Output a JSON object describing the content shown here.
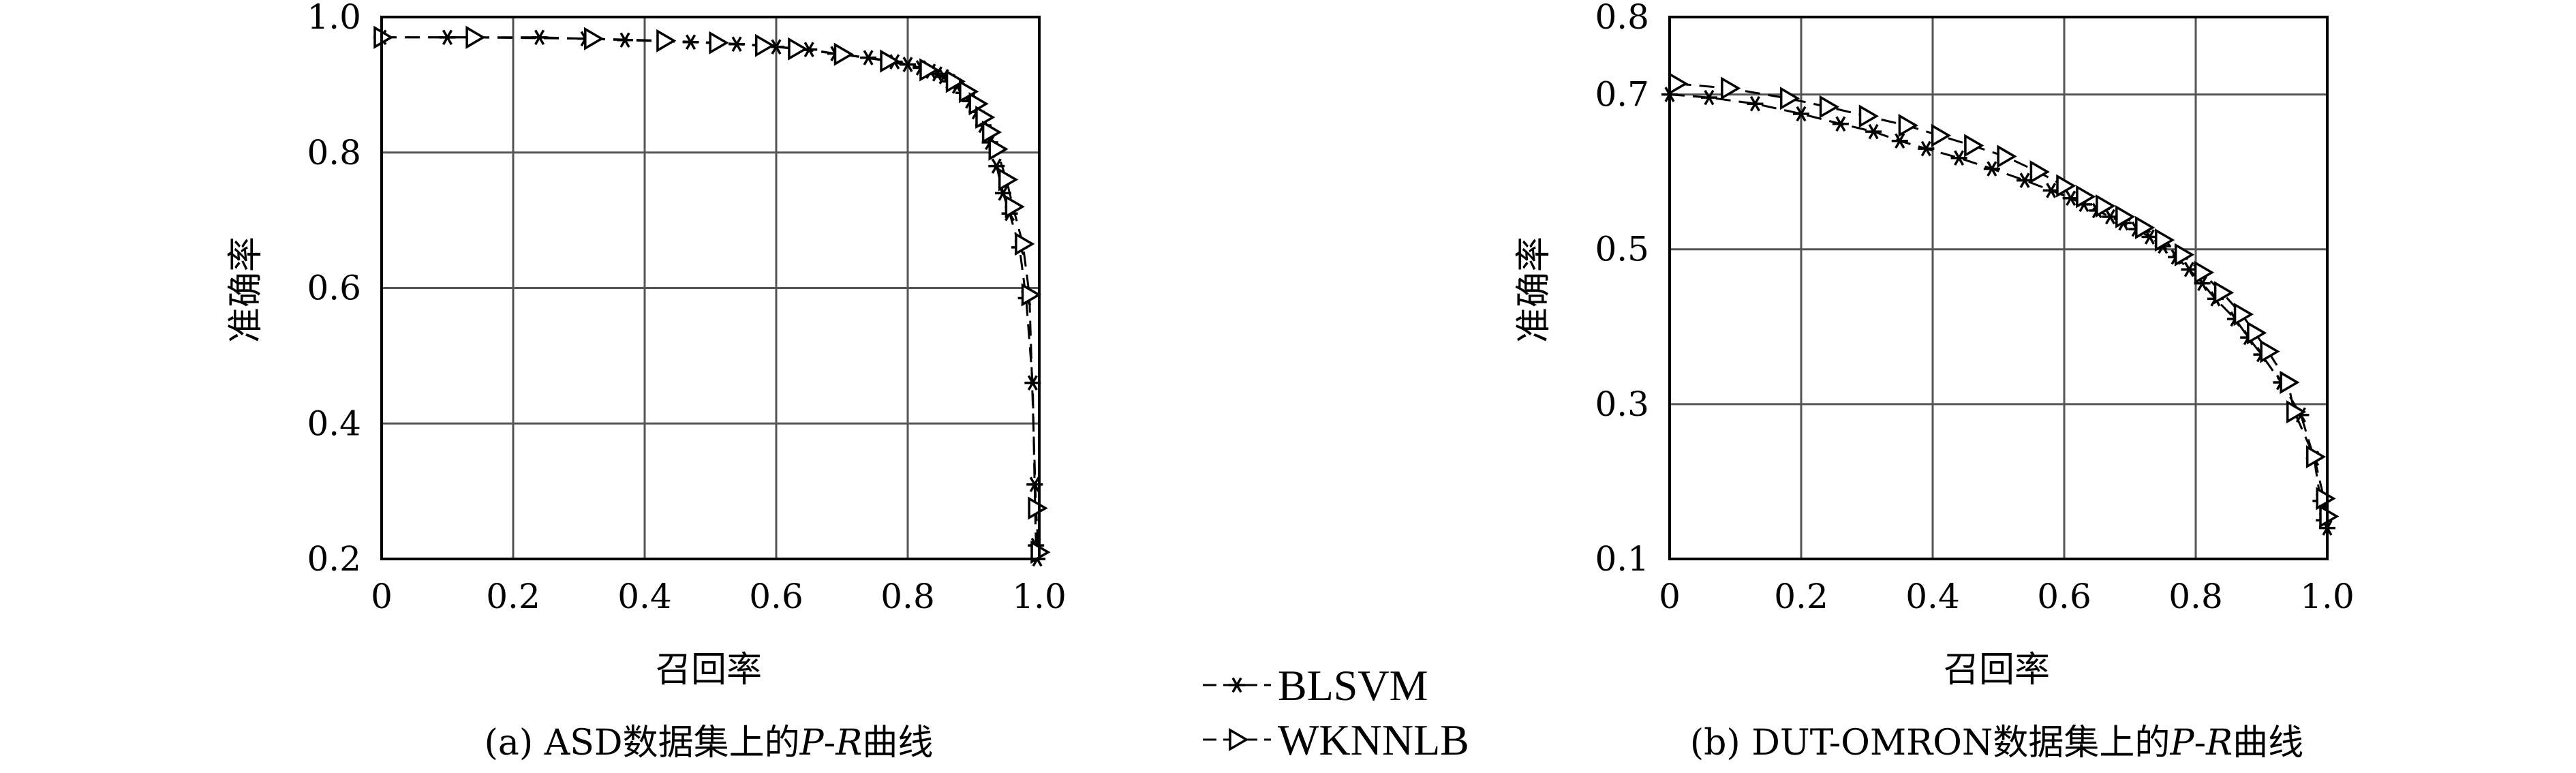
{
  "chart_data": [
    {
      "type": "line",
      "caption": "(a) ASD数据集上的P-R曲线",
      "xlabel": "召回率",
      "ylabel": "准确率",
      "xlim": [
        0,
        1.0
      ],
      "ylim": [
        0.2,
        1.0
      ],
      "x_ticks": [
        0,
        0.2,
        0.4,
        0.6,
        0.8,
        1.0
      ],
      "x_tick_labels": [
        "0",
        "0.2",
        "0.4",
        "0.6",
        "0.8",
        "1.0"
      ],
      "y_ticks": [
        0.2,
        0.4,
        0.6,
        0.8,
        1.0
      ],
      "y_tick_labels": [
        "0.2",
        "0.4",
        "0.6",
        "0.8",
        "1.0"
      ],
      "grid": true,
      "series": [
        {
          "name": "BLSVM",
          "marker": "star",
          "points": [
            [
              0.0,
              0.97
            ],
            [
              0.1,
              0.97
            ],
            [
              0.24,
              0.97
            ],
            [
              0.31,
              0.968
            ],
            [
              0.37,
              0.966
            ],
            [
              0.47,
              0.963
            ],
            [
              0.54,
              0.96
            ],
            [
              0.6,
              0.956
            ],
            [
              0.65,
              0.952
            ],
            [
              0.69,
              0.946
            ],
            [
              0.74,
              0.94
            ],
            [
              0.78,
              0.934
            ],
            [
              0.8,
              0.93
            ],
            [
              0.82,
              0.925
            ],
            [
              0.835,
              0.92
            ],
            [
              0.845,
              0.916
            ],
            [
              0.855,
              0.912
            ],
            [
              0.865,
              0.905
            ],
            [
              0.875,
              0.898
            ],
            [
              0.885,
              0.888
            ],
            [
              0.895,
              0.876
            ],
            [
              0.905,
              0.86
            ],
            [
              0.915,
              0.84
            ],
            [
              0.925,
              0.815
            ],
            [
              0.935,
              0.78
            ],
            [
              0.945,
              0.74
            ],
            [
              0.955,
              0.71
            ],
            [
              0.97,
              0.66
            ],
            [
              0.98,
              0.585
            ],
            [
              0.99,
              0.46
            ],
            [
              0.993,
              0.31
            ],
            [
              0.995,
              0.22
            ],
            [
              0.997,
              0.2
            ]
          ]
        },
        {
          "name": "WKNNLB",
          "marker": "triangle",
          "points": [
            [
              0.0,
              0.97
            ],
            [
              0.14,
              0.97
            ],
            [
              0.32,
              0.968
            ],
            [
              0.43,
              0.965
            ],
            [
              0.51,
              0.962
            ],
            [
              0.58,
              0.958
            ],
            [
              0.63,
              0.953
            ],
            [
              0.7,
              0.945
            ],
            [
              0.77,
              0.935
            ],
            [
              0.83,
              0.922
            ],
            [
              0.87,
              0.905
            ],
            [
              0.89,
              0.89
            ],
            [
              0.905,
              0.872
            ],
            [
              0.915,
              0.852
            ],
            [
              0.925,
              0.83
            ],
            [
              0.935,
              0.805
            ],
            [
              0.95,
              0.76
            ],
            [
              0.96,
              0.72
            ],
            [
              0.975,
              0.665
            ],
            [
              0.985,
              0.59
            ],
            [
              0.995,
              0.275
            ],
            [
              0.999,
              0.21
            ]
          ]
        }
      ]
    },
    {
      "type": "line",
      "caption": "(b) DUT-OMRON数据集上的P-R曲线",
      "xlabel": "召回率",
      "ylabel": "准确率",
      "xlim": [
        0,
        1.0
      ],
      "ylim": [
        0.1,
        0.8
      ],
      "x_ticks": [
        0,
        0.2,
        0.4,
        0.6,
        0.8,
        1.0
      ],
      "x_tick_labels": [
        "0",
        "0.2",
        "0.4",
        "0.6",
        "0.8",
        "1.0"
      ],
      "y_ticks": [
        0.1,
        0.3,
        0.5,
        0.7,
        0.8
      ],
      "y_tick_labels": [
        "0.1",
        "0.3",
        "0.5",
        "0.7",
        "0.8"
      ],
      "grid": true,
      "series": [
        {
          "name": "BLSVM",
          "marker": "star",
          "points": [
            [
              0.0,
              0.7
            ],
            [
              0.06,
              0.696
            ],
            [
              0.13,
              0.688
            ],
            [
              0.2,
              0.675
            ],
            [
              0.26,
              0.662
            ],
            [
              0.31,
              0.652
            ],
            [
              0.35,
              0.64
            ],
            [
              0.39,
              0.63
            ],
            [
              0.44,
              0.618
            ],
            [
              0.49,
              0.604
            ],
            [
              0.54,
              0.589
            ],
            [
              0.58,
              0.576
            ],
            [
              0.61,
              0.566
            ],
            [
              0.63,
              0.558
            ],
            [
              0.65,
              0.55
            ],
            [
              0.67,
              0.542
            ],
            [
              0.69,
              0.534
            ],
            [
              0.71,
              0.526
            ],
            [
              0.73,
              0.516
            ],
            [
              0.75,
              0.504
            ],
            [
              0.77,
              0.49
            ],
            [
              0.79,
              0.474
            ],
            [
              0.81,
              0.456
            ],
            [
              0.83,
              0.436
            ],
            [
              0.86,
              0.41
            ],
            [
              0.88,
              0.386
            ],
            [
              0.9,
              0.364
            ],
            [
              0.93,
              0.328
            ],
            [
              0.96,
              0.286
            ],
            [
              0.98,
              0.23
            ],
            [
              0.99,
              0.175
            ],
            [
              0.995,
              0.15
            ],
            [
              1.0,
              0.14
            ]
          ]
        },
        {
          "name": "WKNNLB",
          "marker": "triangle",
          "points": [
            [
              0.01,
              0.714
            ],
            [
              0.09,
              0.708
            ],
            [
              0.18,
              0.695
            ],
            [
              0.24,
              0.684
            ],
            [
              0.3,
              0.672
            ],
            [
              0.36,
              0.66
            ],
            [
              0.41,
              0.647
            ],
            [
              0.46,
              0.634
            ],
            [
              0.51,
              0.62
            ],
            [
              0.56,
              0.6
            ],
            [
              0.6,
              0.582
            ],
            [
              0.63,
              0.568
            ],
            [
              0.66,
              0.556
            ],
            [
              0.69,
              0.542
            ],
            [
              0.72,
              0.528
            ],
            [
              0.75,
              0.512
            ],
            [
              0.78,
              0.493
            ],
            [
              0.81,
              0.47
            ],
            [
              0.84,
              0.444
            ],
            [
              0.87,
              0.416
            ],
            [
              0.89,
              0.392
            ],
            [
              0.91,
              0.368
            ],
            [
              0.94,
              0.328
            ],
            [
              0.95,
              0.29
            ],
            [
              0.98,
              0.232
            ],
            [
              0.995,
              0.178
            ],
            [
              1.0,
              0.155
            ]
          ]
        }
      ]
    }
  ],
  "legend": {
    "items": [
      {
        "label": "BLSVM",
        "marker": "star"
      },
      {
        "label": "WKNNLB",
        "marker": "triangle"
      }
    ]
  }
}
